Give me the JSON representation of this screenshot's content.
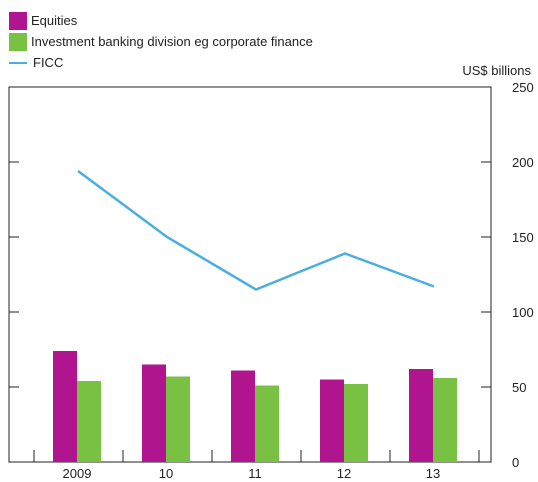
{
  "legend": {
    "items": [
      {
        "label": "Equities",
        "color": "#b0148e",
        "kind": "bar"
      },
      {
        "label": "Investment banking division eg corporate finance",
        "color": "#78c142",
        "kind": "bar"
      },
      {
        "label": "FICC",
        "color": "#4aaee0",
        "kind": "line"
      }
    ]
  },
  "unit_label": "US$ billions",
  "chart_data": {
    "type": "bar+line",
    "categories": [
      "2009",
      "10",
      "11",
      "12",
      "13"
    ],
    "series": [
      {
        "name": "Equities",
        "type": "bar",
        "color": "#b0148e",
        "values": [
          74,
          65,
          61,
          55,
          62
        ]
      },
      {
        "name": "Investment banking division eg corporate finance",
        "type": "bar",
        "color": "#78c142",
        "values": [
          54,
          57,
          51,
          52,
          56
        ]
      },
      {
        "name": "FICC",
        "type": "line",
        "color": "#4aaee0",
        "values": [
          194,
          150,
          115,
          139,
          117
        ]
      }
    ],
    "ylim": [
      0,
      250
    ],
    "yticks": [
      0,
      50,
      100,
      150,
      200,
      250
    ],
    "yaxis_side": "right",
    "grid": false
  }
}
